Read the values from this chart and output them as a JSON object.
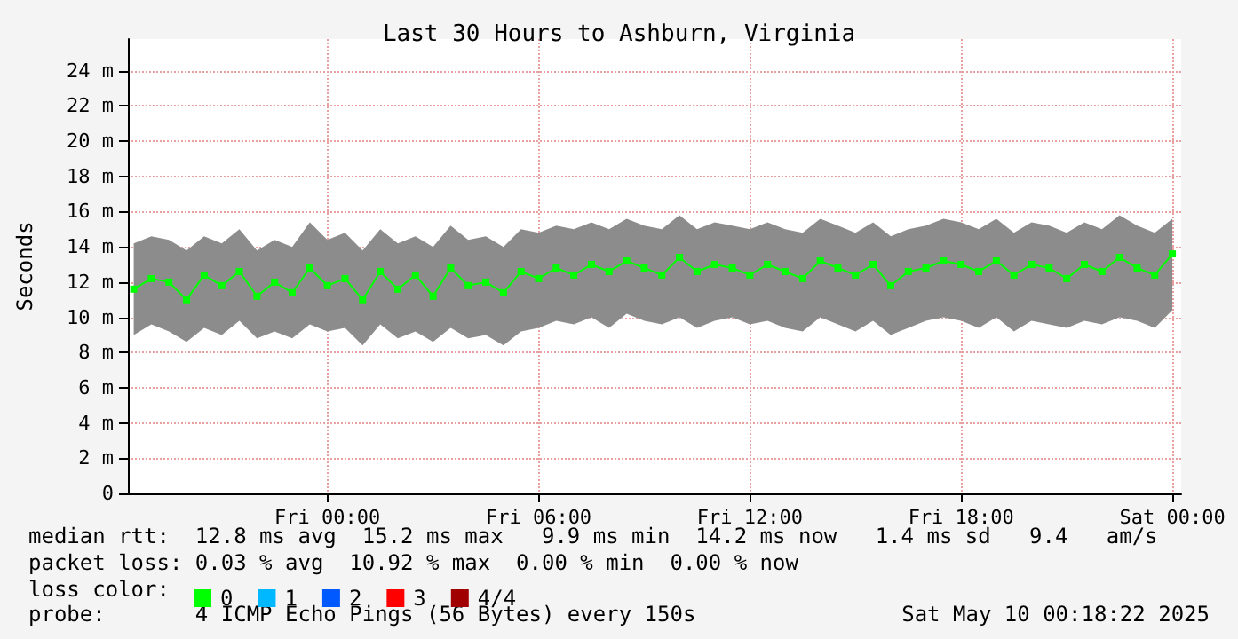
{
  "chart_data": {
    "type": "line",
    "title": "Last 30 Hours to Ashburn, Virginia",
    "ylabel": "Seconds",
    "legend_title": "loss color:",
    "legend": "bottom",
    "grid": true,
    "marker": "square",
    "line_style": "solid",
    "xlim": [
      "2025-05-08T18:20",
      "2025-05-10T00:15"
    ],
    "xticks": [
      {
        "value": "2025-05-09T00:00",
        "label": "Fri 00:00"
      },
      {
        "value": "2025-05-09T06:00",
        "label": "Fri 06:00"
      },
      {
        "value": "2025-05-09T12:00",
        "label": "Fri 12:00"
      },
      {
        "value": "2025-05-09T18:00",
        "label": "Fri 18:00"
      },
      {
        "value": "2025-05-10T00:00",
        "label": "Sat 00:00"
      }
    ],
    "ylim": [
      0,
      25.8
    ],
    "yticks": [
      0,
      {
        "value": 2,
        "label": "2 m"
      },
      {
        "value": 4,
        "label": "4 m"
      },
      {
        "value": 6,
        "label": "6 m"
      },
      {
        "value": 8,
        "label": "8 m"
      },
      {
        "value": 10,
        "label": "10 m"
      },
      {
        "value": 12,
        "label": "12 m"
      },
      {
        "value": 14,
        "label": "14 m"
      },
      {
        "value": 16,
        "label": "16 m"
      },
      {
        "value": 18,
        "label": "18 m"
      },
      {
        "value": 20,
        "label": "20 m"
      },
      {
        "value": 22,
        "label": "22 m"
      },
      {
        "value": 24,
        "label": "24 m"
      }
    ],
    "x": [
      "2025-05-08T18:30",
      "2025-05-08T19:00",
      "2025-05-08T19:30",
      "2025-05-08T20:00",
      "2025-05-08T20:30",
      "2025-05-08T21:00",
      "2025-05-08T21:30",
      "2025-05-08T22:00",
      "2025-05-08T22:30",
      "2025-05-08T23:00",
      "2025-05-08T23:30",
      "2025-05-09T00:00",
      "2025-05-09T00:30",
      "2025-05-09T01:00",
      "2025-05-09T01:30",
      "2025-05-09T02:00",
      "2025-05-09T02:30",
      "2025-05-09T03:00",
      "2025-05-09T03:30",
      "2025-05-09T04:00",
      "2025-05-09T04:30",
      "2025-05-09T05:00",
      "2025-05-09T05:30",
      "2025-05-09T06:00",
      "2025-05-09T06:30",
      "2025-05-09T07:00",
      "2025-05-09T07:30",
      "2025-05-09T08:00",
      "2025-05-09T08:30",
      "2025-05-09T09:00",
      "2025-05-09T09:30",
      "2025-05-09T10:00",
      "2025-05-09T10:30",
      "2025-05-09T11:00",
      "2025-05-09T11:30",
      "2025-05-09T12:00",
      "2025-05-09T12:30",
      "2025-05-09T13:00",
      "2025-05-09T13:30",
      "2025-05-09T14:00",
      "2025-05-09T14:30",
      "2025-05-09T15:00",
      "2025-05-09T15:30",
      "2025-05-09T16:00",
      "2025-05-09T16:30",
      "2025-05-09T17:00",
      "2025-05-09T17:30",
      "2025-05-09T18:00",
      "2025-05-09T18:30",
      "2025-05-09T19:00",
      "2025-05-09T19:30",
      "2025-05-09T20:00",
      "2025-05-09T20:30",
      "2025-05-09T21:00",
      "2025-05-09T21:30",
      "2025-05-09T22:00",
      "2025-05-09T22:30",
      "2025-05-09T23:00",
      "2025-05-09T23:30",
      "2025-05-10T00:00"
    ],
    "series": [
      {
        "color": "#00ff00",
        "values": [
          11.6,
          12.2,
          12.0,
          11.0,
          12.4,
          11.8,
          12.6,
          11.2,
          12.0,
          11.4,
          12.8,
          11.8,
          12.2,
          11.0,
          12.6,
          11.6,
          12.4,
          11.2,
          12.8,
          11.8,
          12.0,
          11.4,
          12.6,
          12.2,
          12.8,
          12.4,
          13.0,
          12.6,
          13.2,
          12.8,
          12.4,
          13.4,
          12.6,
          13.0,
          12.8,
          12.4,
          13.0,
          12.6,
          12.2,
          13.2,
          12.8,
          12.4,
          13.0,
          11.8,
          12.6,
          12.8,
          13.2,
          13.0,
          12.6,
          13.2,
          12.4,
          13.0,
          12.8,
          12.2,
          13.0,
          12.6,
          13.4,
          12.8,
          12.4,
          13.6
        ],
        "lower": [
          9.0,
          9.6,
          9.2,
          8.6,
          9.4,
          9.0,
          9.8,
          8.8,
          9.2,
          8.8,
          9.6,
          9.2,
          9.4,
          8.4,
          9.6,
          8.8,
          9.2,
          8.6,
          9.4,
          8.8,
          9.0,
          8.4,
          9.2,
          9.4,
          9.8,
          9.6,
          10.0,
          9.4,
          10.2,
          9.8,
          9.6,
          10.0,
          9.4,
          9.8,
          10.0,
          9.6,
          9.8,
          9.4,
          9.2,
          10.0,
          9.6,
          9.2,
          9.8,
          9.0,
          9.4,
          9.8,
          10.0,
          9.8,
          9.4,
          10.0,
          9.2,
          9.8,
          9.6,
          9.4,
          9.8,
          9.6,
          10.0,
          9.8,
          9.4,
          10.4
        ],
        "upper": [
          14.2,
          14.6,
          14.4,
          13.8,
          14.6,
          14.2,
          15.0,
          13.8,
          14.4,
          14.0,
          15.4,
          14.4,
          14.8,
          13.8,
          15.0,
          14.2,
          14.6,
          14.0,
          15.2,
          14.4,
          14.6,
          14.0,
          15.0,
          14.8,
          15.2,
          15.0,
          15.4,
          15.0,
          15.6,
          15.2,
          15.0,
          15.8,
          15.0,
          15.4,
          15.2,
          15.0,
          15.4,
          15.0,
          14.8,
          15.6,
          15.2,
          14.8,
          15.4,
          14.6,
          15.0,
          15.2,
          15.6,
          15.4,
          15.0,
          15.6,
          14.8,
          15.4,
          15.2,
          14.8,
          15.4,
          15.0,
          15.8,
          15.2,
          14.8,
          15.6
        ]
      },
      {
        "name": "0",
        "color": "#00ff00",
        "values": [
          null,
          null,
          null,
          null,
          null,
          null,
          null,
          null,
          null,
          null,
          null,
          null,
          null,
          null,
          null,
          null,
          null,
          null,
          null,
          null,
          null,
          null,
          null,
          null,
          null,
          null,
          null,
          null,
          null,
          null,
          null,
          null,
          null,
          null,
          null,
          null,
          null,
          null,
          null,
          null,
          null,
          null,
          null,
          null,
          null,
          null,
          null,
          null,
          null,
          null,
          null,
          null,
          null,
          null,
          null,
          null,
          null,
          null,
          null,
          null
        ]
      },
      {
        "name": "1",
        "color": "#00b8ff",
        "values": [
          null,
          null,
          null,
          null,
          null,
          null,
          null,
          null,
          null,
          null,
          null,
          null,
          null,
          null,
          null,
          null,
          null,
          null,
          null,
          null,
          null,
          null,
          null,
          null,
          null,
          null,
          null,
          null,
          null,
          null,
          null,
          null,
          null,
          null,
          null,
          null,
          null,
          null,
          null,
          null,
          null,
          null,
          null,
          null,
          null,
          null,
          null,
          null,
          null,
          null,
          null,
          null,
          null,
          null,
          null,
          null,
          null,
          null,
          null,
          null
        ]
      },
      {
        "name": "2",
        "color": "#0059ff",
        "values": [
          null,
          null,
          null,
          null,
          null,
          null,
          null,
          null,
          null,
          null,
          null,
          null,
          null,
          null,
          null,
          null,
          null,
          null,
          null,
          null,
          null,
          null,
          null,
          null,
          null,
          null,
          null,
          null,
          null,
          null,
          null,
          null,
          null,
          null,
          null,
          null,
          null,
          null,
          null,
          null,
          null,
          null,
          null,
          null,
          null,
          null,
          null,
          null,
          null,
          null,
          null,
          null,
          null,
          null,
          null,
          null,
          null,
          null,
          null,
          null
        ]
      },
      {
        "name": "3",
        "color": "#ff0000",
        "values": [
          null,
          null,
          null,
          null,
          null,
          null,
          null,
          null,
          null,
          null,
          null,
          null,
          null,
          null,
          null,
          null,
          null,
          null,
          null,
          null,
          null,
          null,
          null,
          null,
          null,
          null,
          null,
          null,
          null,
          null,
          null,
          null,
          null,
          null,
          null,
          null,
          null,
          null,
          null,
          null,
          null,
          null,
          null,
          null,
          null,
          null,
          null,
          null,
          null,
          null,
          null,
          null,
          null,
          null,
          null,
          null,
          null,
          null,
          null,
          null
        ]
      },
      {
        "name": "4/4",
        "color": "#a10000",
        "values": [
          null,
          null,
          null,
          null,
          null,
          null,
          null,
          null,
          null,
          null,
          null,
          null,
          null,
          null,
          null,
          null,
          null,
          null,
          null,
          null,
          null,
          null,
          null,
          null,
          null,
          null,
          null,
          null,
          null,
          null,
          null,
          null,
          null,
          null,
          null,
          null,
          null,
          null,
          null,
          null,
          null,
          null,
          null,
          null,
          null,
          null,
          null,
          null,
          null,
          null,
          null,
          null,
          null,
          null,
          null,
          null,
          null,
          null,
          null,
          null
        ]
      }
    ],
    "annotations": [
      "median rtt:  12.8 ms avg  15.2 ms max   9.9 ms min  14.2 ms now   1.4 ms sd   9.4   am/s",
      "packet loss: 0.03 % avg  10.92 % max  0.00 % min  0.00 % now",
      "probe:       4 ICMP Echo Pings (56 Bytes) every 150s",
      "Sat May 10 00:18:22 2025"
    ]
  }
}
